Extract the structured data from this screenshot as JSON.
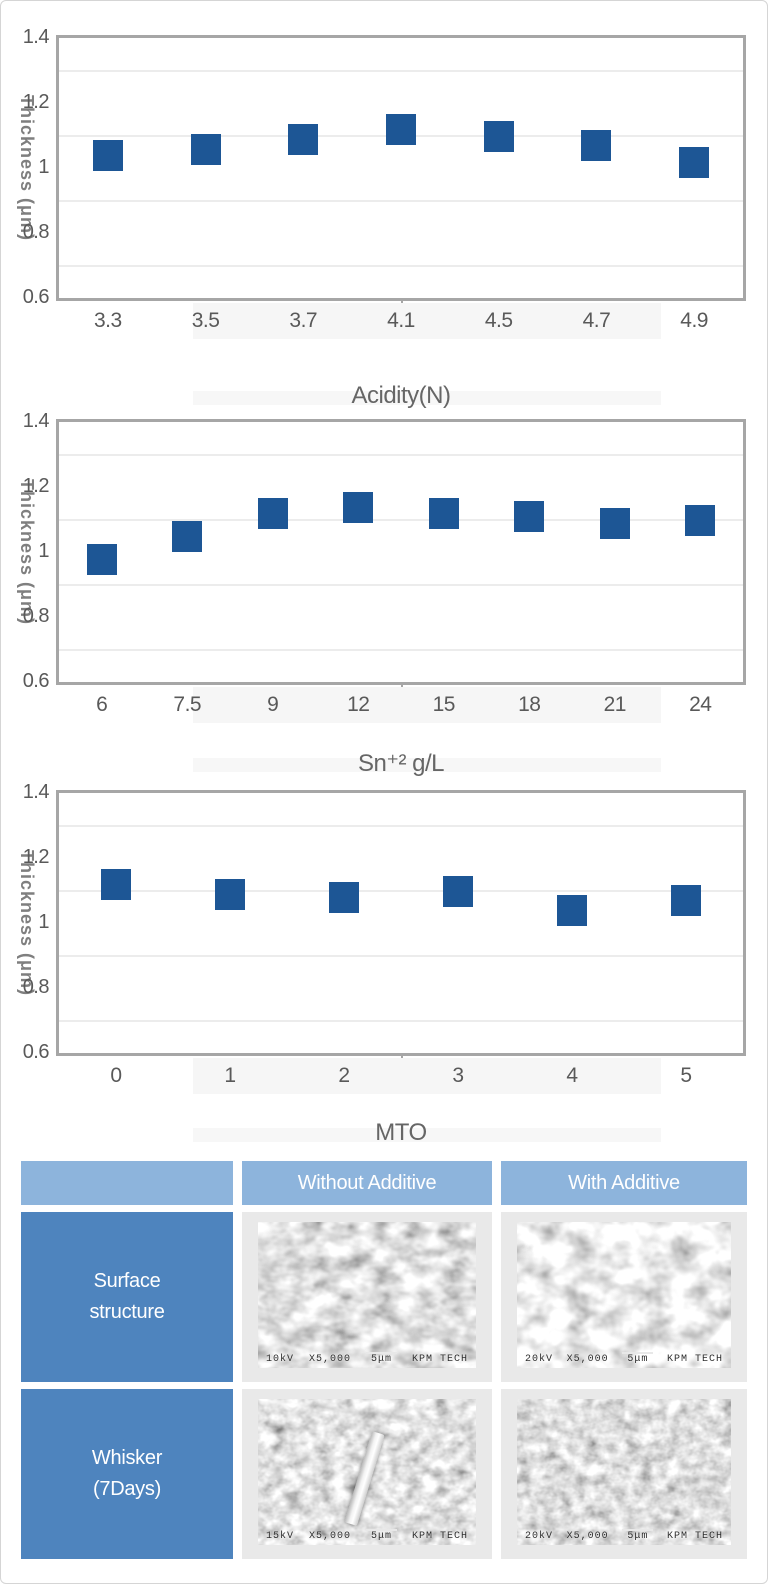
{
  "palette": {
    "marker_blue": "#1d5695",
    "plot_border": "#a6a6a6",
    "gridline": "#ececec",
    "tick_text": "#595959",
    "header_bg": "#8db4dc",
    "row_label_bg": "#4e84be",
    "image_cell_bg": "#e9e9e9"
  },
  "chart_data": [
    {
      "type": "scatter",
      "marker": "square",
      "marker_color": "#1d5695",
      "ylabel": "Thickness (μm)",
      "xlabel": "Acidity(N)",
      "ylim": [
        0.6,
        1.4
      ],
      "yticks": [
        {
          "label": "1.4",
          "value": 1.4
        },
        {
          "label": "1.2",
          "value": 1.2
        },
        {
          "label": "1",
          "value": 1.0
        },
        {
          "label": "0.8",
          "value": 0.8
        },
        {
          "label": "0.6",
          "value": 0.6
        }
      ],
      "gridlines": [
        1.3,
        1.1,
        0.9,
        0.7
      ],
      "grid": true,
      "legend": "none",
      "categories": [
        "3.3",
        "3.5",
        "3.7",
        "4.1",
        "4.5",
        "4.7",
        "4.9"
      ],
      "values": [
        1.04,
        1.06,
        1.09,
        1.12,
        1.1,
        1.07,
        1.02
      ]
    },
    {
      "type": "scatter",
      "marker": "square",
      "marker_color": "#1d5695",
      "ylabel": "Thickness (μm)",
      "xlabel": "Sn⁺² g/L",
      "ylim": [
        0.6,
        1.4
      ],
      "yticks": [
        {
          "label": "1.4",
          "value": 1.4
        },
        {
          "label": "1.2",
          "value": 1.2
        },
        {
          "label": "1",
          "value": 1.0
        },
        {
          "label": "0.8",
          "value": 0.8
        },
        {
          "label": "0.6",
          "value": 0.6
        }
      ],
      "gridlines": [
        1.3,
        1.1,
        0.9,
        0.7
      ],
      "grid": true,
      "legend": "none",
      "categories": [
        "6",
        "7.5",
        "9",
        "12",
        "15",
        "18",
        "21",
        "24"
      ],
      "values": [
        0.98,
        1.05,
        1.12,
        1.14,
        1.12,
        1.11,
        1.09,
        1.1
      ]
    },
    {
      "type": "scatter",
      "marker": "square",
      "marker_color": "#1d5695",
      "ylabel": "Thickness (μm)",
      "xlabel": "MTO",
      "ylim": [
        0.6,
        1.4
      ],
      "yticks": [
        {
          "label": "1.4",
          "value": 1.4
        },
        {
          "label": "1.2",
          "value": 1.2
        },
        {
          "label": "1",
          "value": 1.0
        },
        {
          "label": "0.8",
          "value": 0.8
        },
        {
          "label": "0.6",
          "value": 0.6
        }
      ],
      "gridlines": [
        1.3,
        1.1,
        0.9,
        0.7
      ],
      "grid": true,
      "legend": "none",
      "categories": [
        "0",
        "1",
        "2",
        "3",
        "4",
        "5"
      ],
      "values": [
        1.12,
        1.09,
        1.08,
        1.1,
        1.04,
        1.07
      ]
    }
  ],
  "table": {
    "col_headers": [
      "",
      "Without Additive",
      "With Additive"
    ],
    "rows": [
      {
        "label": "Surface\nstructure",
        "cells": [
          {
            "caption": {
              "kv": "10kV",
              "mag": "X5,000",
              "scale": "5μm",
              "brand": "KPM TECH"
            }
          },
          {
            "caption": {
              "kv": "20kV",
              "mag": "X5,000",
              "scale": "5μm",
              "brand": "KPM TECH"
            }
          }
        ]
      },
      {
        "label": "Whisker\n(7Days)",
        "cells": [
          {
            "caption": {
              "kv": "15kV",
              "mag": "X5,000",
              "scale": "5μm",
              "brand": "KPM TECH"
            }
          },
          {
            "caption": {
              "kv": "20kV",
              "mag": "X5,000",
              "scale": "5μm",
              "brand": "KPM TECH"
            }
          }
        ]
      }
    ]
  }
}
